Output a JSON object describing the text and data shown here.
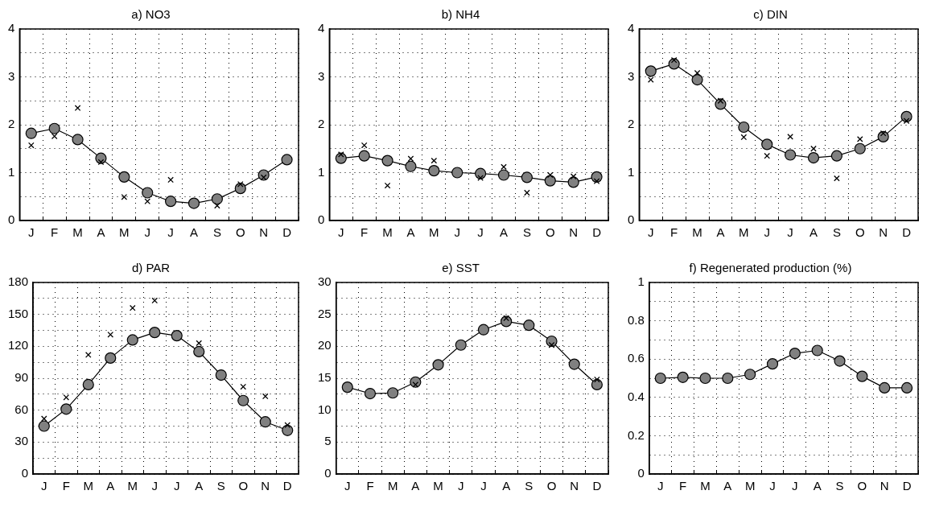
{
  "chart_data": [
    {
      "type": "line",
      "title": "a) NO3",
      "categories": [
        "J",
        "F",
        "M",
        "A",
        "M",
        "J",
        "J",
        "A",
        "S",
        "O",
        "N",
        "D"
      ],
      "ylim": [
        0,
        4
      ],
      "yticks": [
        0,
        {
          "value": 0.5,
          "label": null
        },
        1,
        {
          "value": 1.5,
          "label": null
        },
        2,
        {
          "value": 2.5,
          "label": null
        },
        3,
        {
          "value": 3.5,
          "label": null
        },
        4
      ],
      "grid": true,
      "legend": false,
      "series": [
        {
          "marker": "circle",
          "line_style": "solid",
          "color": "#808080",
          "values": [
            1.82,
            1.92,
            1.69,
            1.3,
            0.91,
            0.58,
            0.4,
            0.36,
            0.45,
            0.67,
            0.95,
            1.27
          ]
        },
        {
          "type": "scatter",
          "marker": "cross",
          "color": "#000000",
          "values": [
            1.57,
            1.76,
            2.35,
            1.22,
            0.49,
            0.4,
            0.85,
            null,
            0.31,
            0.76,
            0.9,
            null
          ]
        }
      ]
    },
    {
      "type": "line",
      "title": "b) NH4",
      "categories": [
        "J",
        "F",
        "M",
        "A",
        "M",
        "J",
        "J",
        "A",
        "S",
        "O",
        "N",
        "D"
      ],
      "ylim": [
        0,
        4
      ],
      "yticks": [
        0,
        {
          "value": 0.5,
          "label": null
        },
        1,
        {
          "value": 1.5,
          "label": null
        },
        2,
        {
          "value": 2.5,
          "label": null
        },
        3,
        {
          "value": 3.5,
          "label": null
        },
        4
      ],
      "grid": true,
      "legend": false,
      "series": [
        {
          "marker": "circle",
          "line_style": "solid",
          "color": "#808080",
          "values": [
            1.3,
            1.35,
            1.25,
            1.13,
            1.04,
            1.0,
            0.98,
            0.95,
            0.9,
            0.83,
            0.8,
            0.91
          ]
        },
        {
          "type": "scatter",
          "marker": "cross",
          "color": "#000000",
          "values": [
            1.38,
            1.57,
            0.73,
            1.29,
            1.25,
            null,
            0.89,
            1.12,
            0.58,
            0.95,
            0.92,
            0.82
          ]
        }
      ]
    },
    {
      "type": "line",
      "title": "c) DIN",
      "categories": [
        "J",
        "F",
        "M",
        "A",
        "M",
        "J",
        "J",
        "A",
        "S",
        "O",
        "N",
        "D"
      ],
      "ylim": [
        0,
        4
      ],
      "yticks": [
        0,
        {
          "value": 0.5,
          "label": null
        },
        1,
        {
          "value": 1.5,
          "label": null
        },
        2,
        {
          "value": 2.5,
          "label": null
        },
        3,
        {
          "value": 3.5,
          "label": null
        },
        4
      ],
      "grid": true,
      "legend": false,
      "series": [
        {
          "marker": "circle",
          "line_style": "solid",
          "color": "#808080",
          "values": [
            3.12,
            3.27,
            2.94,
            2.43,
            1.95,
            1.59,
            1.37,
            1.31,
            1.35,
            1.5,
            1.75,
            2.17
          ]
        },
        {
          "type": "scatter",
          "marker": "cross",
          "color": "#000000",
          "values": [
            2.94,
            3.35,
            3.08,
            2.5,
            1.74,
            1.35,
            1.75,
            1.5,
            0.88,
            1.7,
            1.82,
            2.08
          ]
        }
      ]
    },
    {
      "type": "line",
      "title": "d) PAR",
      "categories": [
        "J",
        "F",
        "M",
        "A",
        "M",
        "J",
        "J",
        "A",
        "S",
        "O",
        "N",
        "D"
      ],
      "ylim": [
        0,
        180
      ],
      "yticks": [
        0,
        {
          "value": 15,
          "label": null
        },
        30,
        {
          "value": 45,
          "label": null
        },
        60,
        {
          "value": 75,
          "label": null
        },
        90,
        {
          "value": 105,
          "label": null
        },
        120,
        {
          "value": 135,
          "label": null
        },
        150,
        {
          "value": 165,
          "label": null
        },
        180
      ],
      "grid": true,
      "legend": false,
      "series": [
        {
          "marker": "circle",
          "line_style": "solid",
          "color": "#808080",
          "values": [
            45,
            61,
            84,
            109,
            126,
            133,
            130,
            115,
            93,
            69,
            49,
            41
          ]
        },
        {
          "type": "scatter",
          "marker": "cross",
          "color": "#000000",
          "values": [
            52,
            72,
            112,
            131,
            156,
            163,
            null,
            123,
            null,
            82,
            73,
            46
          ]
        }
      ]
    },
    {
      "type": "line",
      "title": "e) SST",
      "categories": [
        "J",
        "F",
        "M",
        "A",
        "M",
        "J",
        "J",
        "A",
        "S",
        "O",
        "N",
        "D"
      ],
      "ylim": [
        0,
        30
      ],
      "yticks": [
        0,
        {
          "value": 2.5,
          "label": null
        },
        5,
        {
          "value": 7.5,
          "label": null
        },
        10,
        {
          "value": 12.5,
          "label": null
        },
        15,
        {
          "value": 17.5,
          "label": null
        },
        20,
        {
          "value": 22.5,
          "label": null
        },
        25,
        {
          "value": 27.5,
          "label": null
        },
        30
      ],
      "grid": true,
      "legend": false,
      "series": [
        {
          "marker": "circle",
          "line_style": "solid",
          "color": "#808080",
          "values": [
            13.6,
            12.6,
            12.7,
            14.4,
            17.1,
            20.2,
            22.6,
            23.9,
            23.3,
            20.8,
            17.2,
            14.0
          ]
        },
        {
          "type": "scatter",
          "marker": "cross",
          "color": "#000000",
          "values": [
            null,
            null,
            null,
            14.0,
            null,
            null,
            null,
            24.4,
            null,
            20.2,
            null,
            14.8
          ]
        }
      ]
    },
    {
      "type": "line",
      "title": "f) Regenerated production (%)",
      "categories": [
        "J",
        "F",
        "M",
        "A",
        "M",
        "J",
        "J",
        "A",
        "S",
        "O",
        "N",
        "D"
      ],
      "ylim": [
        0,
        1
      ],
      "yticks": [
        0,
        {
          "value": 0.1,
          "label": null
        },
        0.2,
        {
          "value": 0.3,
          "label": null
        },
        0.4,
        {
          "value": 0.5,
          "label": null
        },
        0.6,
        {
          "value": 0.7,
          "label": null
        },
        0.8,
        {
          "value": 0.9,
          "label": null
        },
        1
      ],
      "grid": true,
      "legend": false,
      "series": [
        {
          "marker": "circle",
          "line_style": "solid",
          "color": "#808080",
          "values": [
            0.5,
            0.505,
            0.5,
            0.5,
            0.52,
            0.575,
            0.63,
            0.645,
            0.59,
            0.51,
            0.45,
            0.45
          ]
        }
      ]
    }
  ]
}
